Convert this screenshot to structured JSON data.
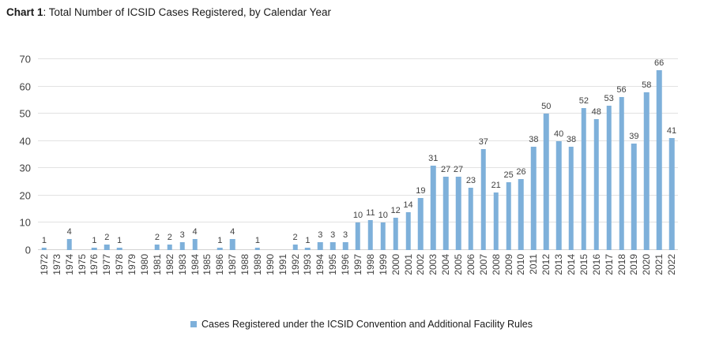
{
  "chart_data": {
    "type": "bar",
    "title_bold": "Chart 1",
    "title_rest": ": Total Number of ICSID Cases Registered, by Calendar Year",
    "categories": [
      "1972",
      "1973",
      "1974",
      "1975",
      "1976",
      "1977",
      "1978",
      "1979",
      "1980",
      "1981",
      "1982",
      "1983",
      "1984",
      "1985",
      "1986",
      "1987",
      "1988",
      "1989",
      "1990",
      "1991",
      "1992",
      "1993",
      "1994",
      "1995",
      "1996",
      "1997",
      "1998",
      "1999",
      "2000",
      "2001",
      "2002",
      "2003",
      "2004",
      "2005",
      "2006",
      "2007",
      "2008",
      "2009",
      "2010",
      "2011",
      "2012",
      "2013",
      "2014",
      "2015",
      "2016",
      "2017",
      "2018",
      "2019",
      "2020",
      "2021",
      "2022"
    ],
    "values": [
      1,
      0,
      4,
      0,
      1,
      2,
      1,
      0,
      0,
      2,
      2,
      3,
      4,
      0,
      1,
      4,
      0,
      1,
      0,
      0,
      2,
      1,
      3,
      3,
      3,
      10,
      11,
      10,
      12,
      14,
      19,
      31,
      27,
      27,
      23,
      37,
      21,
      25,
      26,
      38,
      50,
      40,
      38,
      52,
      48,
      53,
      56,
      39,
      58,
      66,
      41
    ],
    "xlabel": "",
    "ylabel": "",
    "ylim": [
      0,
      70
    ],
    "yticks": [
      0,
      10,
      20,
      30,
      40,
      50,
      60,
      70
    ],
    "grid": true,
    "legend_position": "bottom",
    "legend_label": "Cases Registered under the ICSID Convention and Additional Facility Rules",
    "bar_color": "#7EB0DA",
    "gridline_color": "#E2E2E2",
    "label_color": "#404040",
    "zero_values_hidden": true
  }
}
